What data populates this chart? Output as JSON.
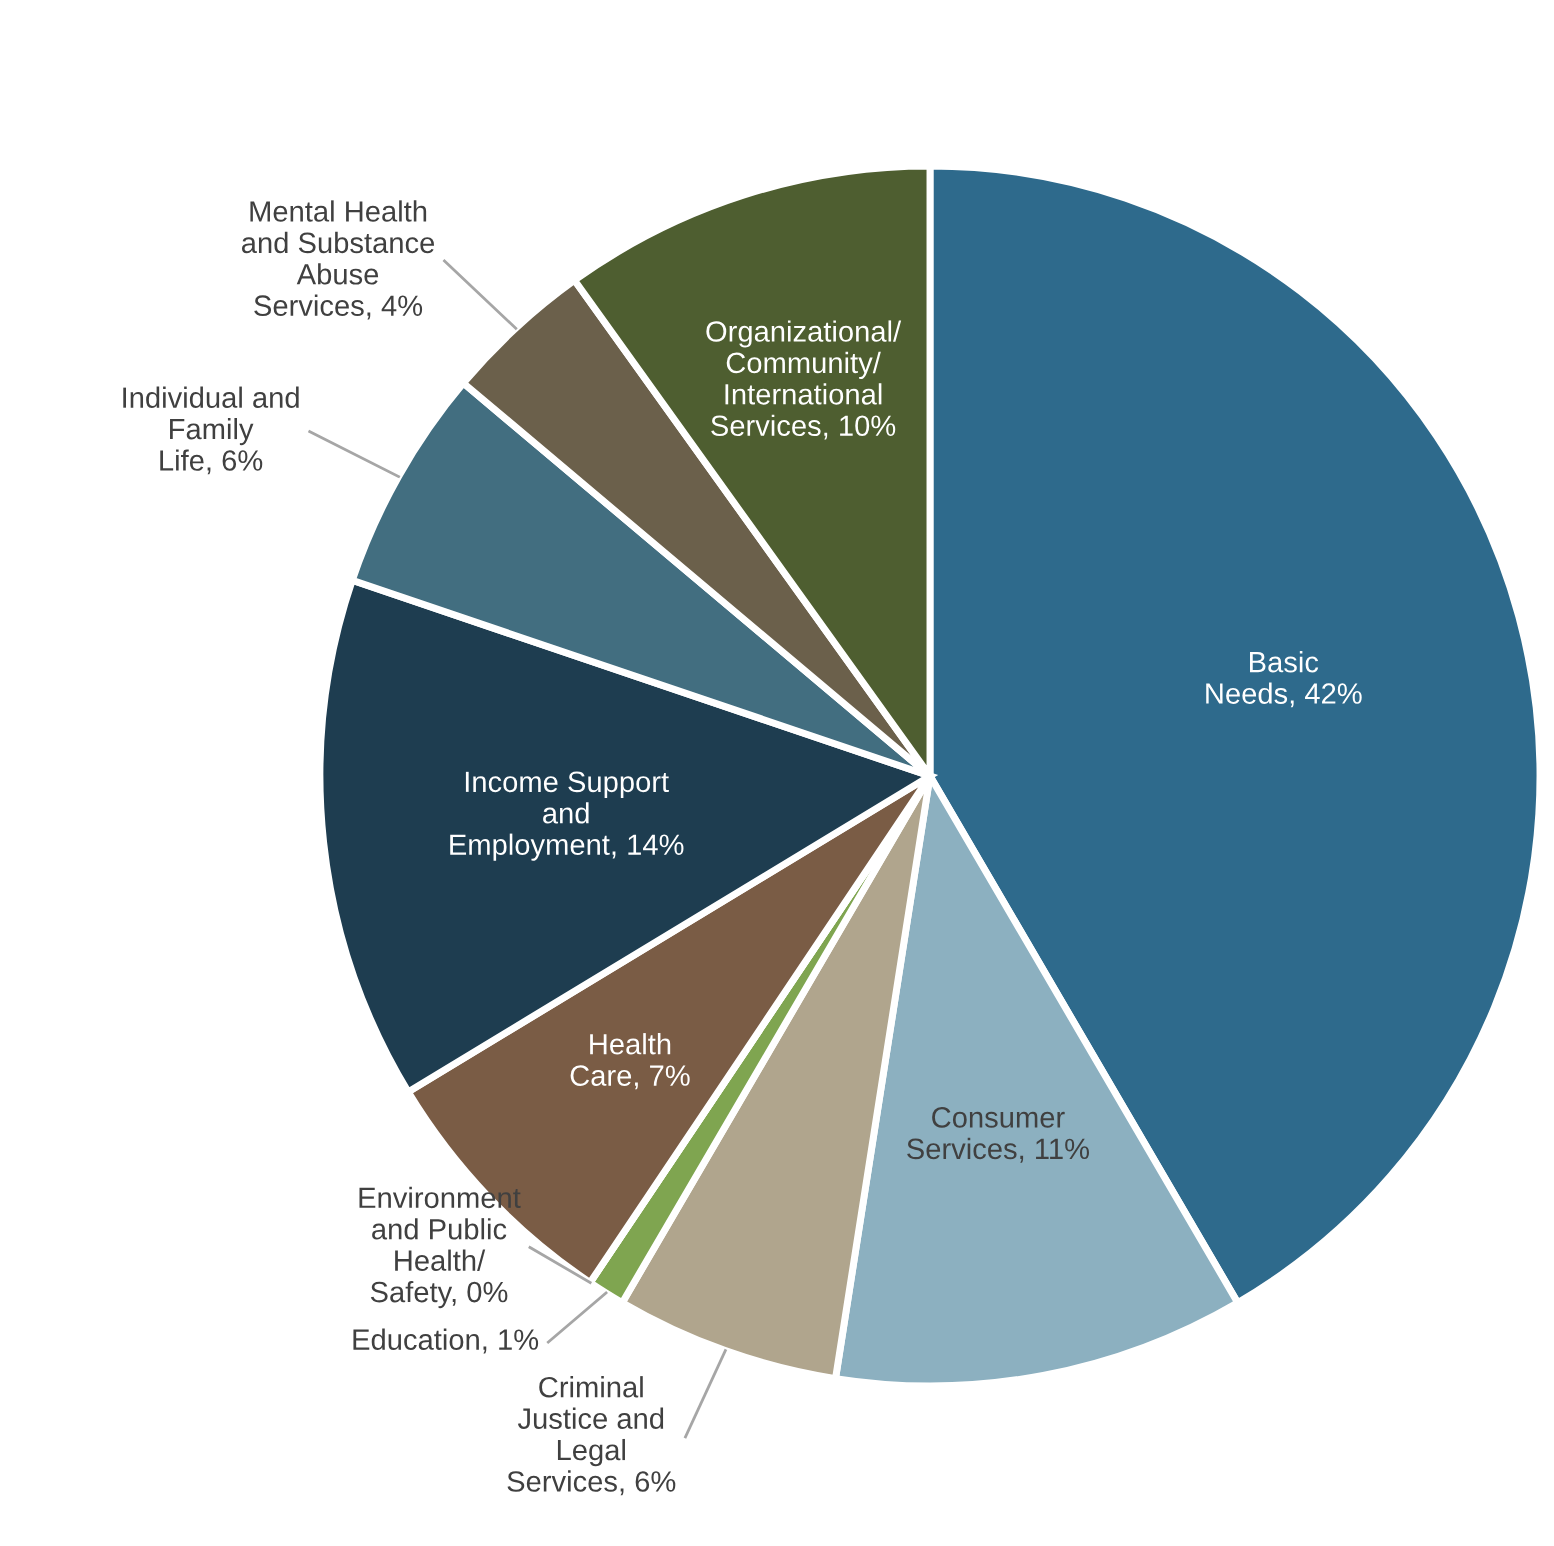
{
  "chart_data": {
    "type": "pie",
    "categories": [
      "Basic Needs",
      "Consumer Services",
      "Criminal Justice and Legal Services",
      "Education",
      "Environment and Public Health/Safety",
      "Health Care",
      "Income Support and Employment",
      "Individual and Family Life",
      "Mental Health and Substance Abuse Services",
      "Organizational/Community/International Services"
    ],
    "values": [
      42,
      11,
      6,
      1,
      0,
      7,
      14,
      6,
      4,
      10
    ],
    "value_labels": [
      "42%",
      "11%",
      "6%",
      "1%",
      "0%",
      "7%",
      "14%",
      "6%",
      "4%",
      "10%"
    ],
    "colors": [
      "#2e6a8c",
      "#8cb0c0",
      "#b0a58d",
      "#7fa550",
      "#c9b98f",
      "#7a5c45",
      "#1e3d50",
      "#426e80",
      "#6b604b",
      "#4e5e30"
    ]
  }
}
